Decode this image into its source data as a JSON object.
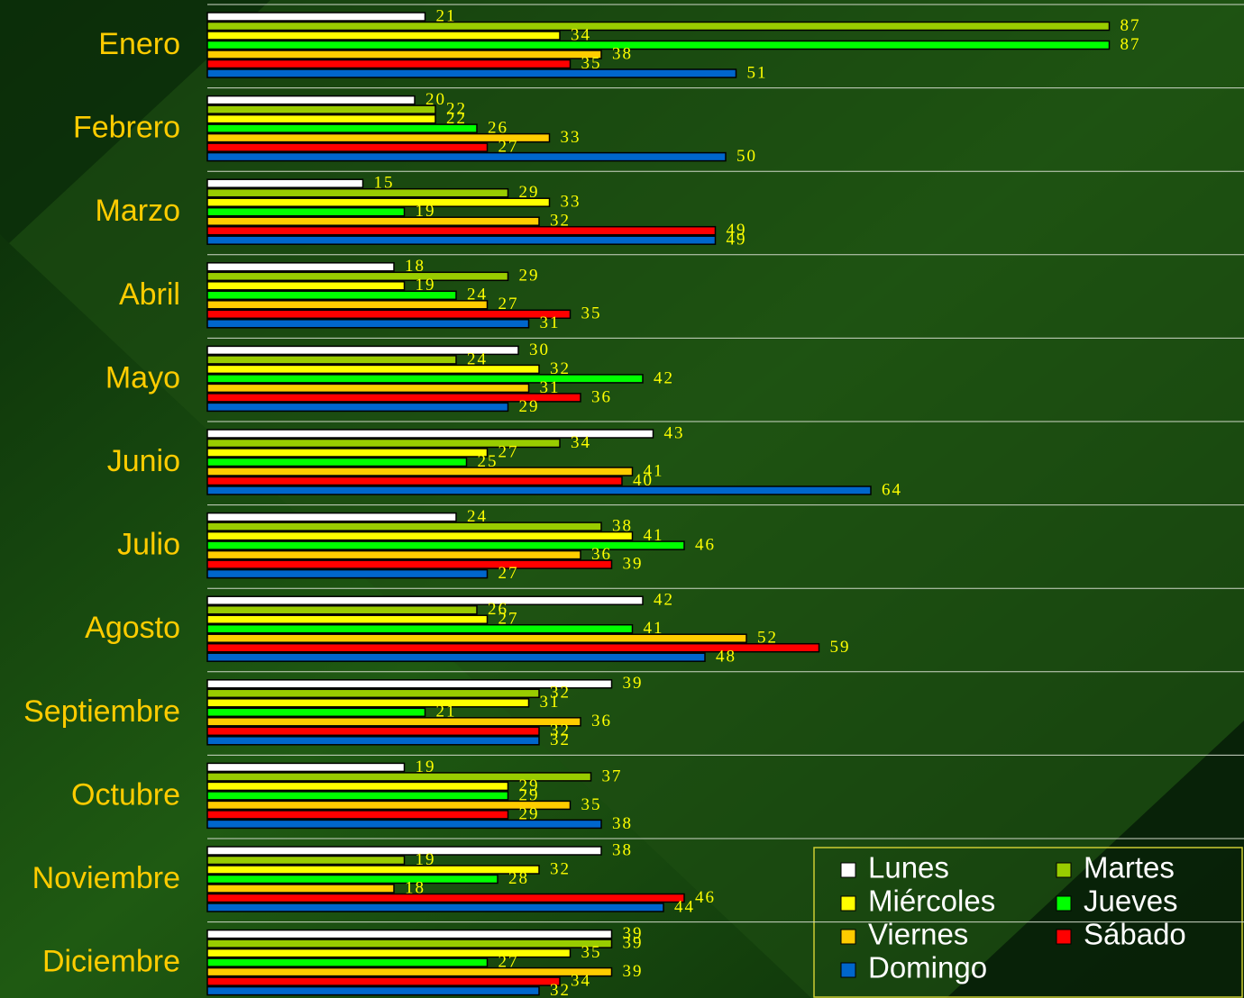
{
  "chart_data": {
    "type": "bar",
    "orientation": "horizontal",
    "categories": [
      "Enero",
      "Febrero",
      "Marzo",
      "Abril",
      "Mayo",
      "Junio",
      "Julio",
      "Agosto",
      "Septiembre",
      "Octubre",
      "Noviembre",
      "Diciembre"
    ],
    "series": [
      {
        "name": "Lunes",
        "color": "#ffffff",
        "values": [
          21,
          20,
          15,
          18,
          30,
          43,
          24,
          42,
          39,
          19,
          38,
          39
        ]
      },
      {
        "name": "Martes",
        "color": "#99cc00",
        "values": [
          87,
          22,
          29,
          29,
          24,
          34,
          38,
          26,
          32,
          37,
          19,
          39
        ]
      },
      {
        "name": "Miércoles",
        "color": "#ffff00",
        "values": [
          34,
          22,
          33,
          19,
          32,
          27,
          41,
          27,
          31,
          29,
          32,
          35
        ]
      },
      {
        "name": "Jueves",
        "color": "#00ff00",
        "values": [
          87,
          26,
          19,
          24,
          42,
          25,
          46,
          41,
          21,
          29,
          28,
          27
        ]
      },
      {
        "name": "Viernes",
        "color": "#ffcc00",
        "values": [
          38,
          33,
          32,
          27,
          31,
          41,
          36,
          52,
          36,
          35,
          18,
          39
        ]
      },
      {
        "name": "Sábado",
        "color": "#ff0000",
        "values": [
          35,
          27,
          49,
          35,
          36,
          40,
          39,
          59,
          32,
          29,
          46,
          34
        ]
      },
      {
        "name": "Domingo",
        "color": "#0066cc",
        "values": [
          51,
          50,
          49,
          31,
          29,
          64,
          27,
          48,
          32,
          38,
          44,
          32
        ]
      }
    ],
    "xlim": [
      0,
      100
    ],
    "legend": "bottom-right"
  }
}
